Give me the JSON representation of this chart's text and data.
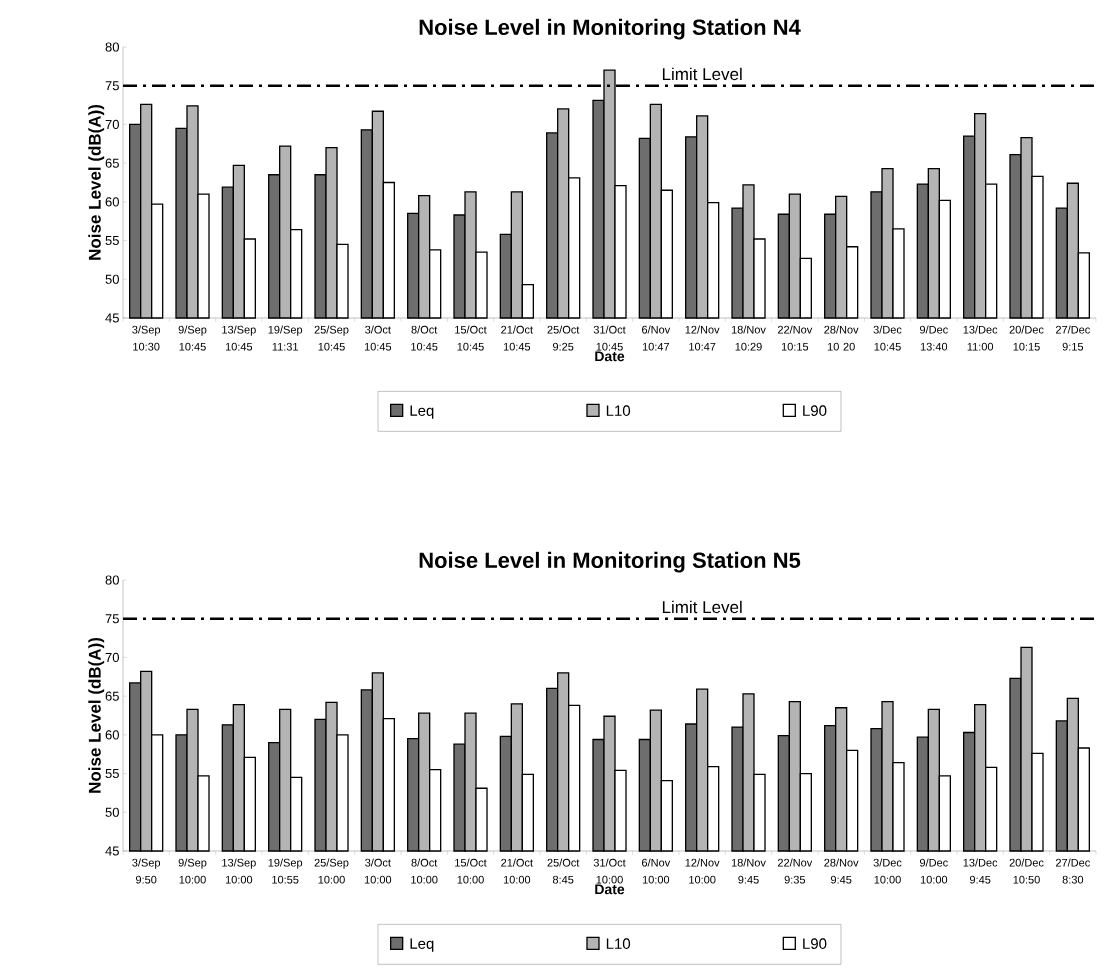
{
  "chart_data": [
    {
      "type": "bar",
      "title": "Noise Level in Monitoring Station N4",
      "xlabel": "Date",
      "ylabel": "Noise Level (dB(A))",
      "categories": [
        "3/Sep 10:30",
        "9/Sep 10:45",
        "13/Sep 10:45",
        "19/Sep 11:31",
        "25/Sep 10:45",
        "3/Oct 10:45",
        "8/Oct 10:45",
        "15/Oct 10:45",
        "21/Oct 10:45",
        "25/Oct 9:25",
        "31/Oct 10:45",
        "6/Nov 10:47",
        "12/Nov 10:47",
        "18/Nov 10:29",
        "22/Nov 10:15",
        "28/Nov 10 20",
        "3/Dec 10:45",
        "9/Dec 13:40",
        "13/Dec 11:00",
        "20/Dec 10:15",
        "27/Dec 9:15"
      ],
      "series": [
        {
          "name": "Leq",
          "color": "#6e6e6e",
          "values": [
            70,
            69.5,
            61.9,
            63.5,
            63.5,
            69.3,
            58.5,
            58.3,
            55.8,
            68.9,
            73.1,
            68.2,
            68.4,
            59.2,
            58.4,
            58.4,
            61.3,
            62.3,
            68.5,
            66.1,
            59.2
          ]
        },
        {
          "name": "L10",
          "color": "#b4b4b4",
          "values": [
            72.6,
            72.4,
            64.7,
            67.2,
            67,
            71.7,
            60.8,
            61.3,
            61.3,
            72,
            77,
            72.6,
            71.1,
            62.2,
            61,
            60.7,
            64.3,
            64.3,
            71.4,
            68.3,
            62.4
          ]
        },
        {
          "name": "L90",
          "color": "#ffffff",
          "values": [
            59.7,
            61,
            55.2,
            56.4,
            54.5,
            62.5,
            53.8,
            53.5,
            49.3,
            63.1,
            62.1,
            61.5,
            59.9,
            55.2,
            52.7,
            54.2,
            56.5,
            60.2,
            62.3,
            63.3,
            53.4
          ]
        }
      ],
      "ylim": [
        45,
        80
      ],
      "yticks": [
        45,
        50,
        55,
        60,
        65,
        70,
        75,
        80
      ],
      "ref_lines": [
        {
          "axis": "y",
          "value": 75,
          "label": "Limit Level",
          "color": "#000000",
          "line_style": "dashed"
        }
      ],
      "legend": "bottom"
    },
    {
      "type": "bar",
      "title": "Noise Level in Monitoring Station N5",
      "xlabel": "Date",
      "ylabel": "Noise Level (dB(A))",
      "categories": [
        "3/Sep 9:50",
        "9/Sep 10:00",
        "13/Sep 10:00",
        "19/Sep 10:55",
        "25/Sep 10:00",
        "3/Oct 10:00",
        "8/Oct 10:00",
        "15/Oct 10:00",
        "21/Oct 10:00",
        "25/Oct 8:45",
        "31/Oct 10:00",
        "6/Nov 10:00",
        "12/Nov 10:00",
        "18/Nov 9:45",
        "22/Nov 9:35",
        "28/Nov 9:45",
        "3/Dec 10:00",
        "9/Dec 10:00",
        "13/Dec 9:45",
        "20/Dec 10:50",
        "27/Dec 8:30"
      ],
      "series": [
        {
          "name": "Leq",
          "color": "#6e6e6e",
          "values": [
            66.7,
            60,
            61.3,
            59,
            62,
            65.8,
            59.5,
            58.8,
            59.8,
            66,
            59.4,
            59.4,
            61.4,
            61,
            59.9,
            61.2,
            60.8,
            59.7,
            60.3,
            67.3,
            61.8
          ]
        },
        {
          "name": "L10",
          "color": "#b4b4b4",
          "values": [
            68.2,
            63.3,
            63.9,
            63.3,
            64.2,
            68,
            62.8,
            62.8,
            64,
            68,
            62.4,
            63.2,
            65.9,
            65.3,
            64.3,
            63.5,
            64.3,
            63.3,
            63.9,
            71.3,
            64.7
          ]
        },
        {
          "name": "L90",
          "color": "#ffffff",
          "values": [
            60,
            54.7,
            57.1,
            54.5,
            60,
            62.1,
            55.5,
            53.1,
            54.9,
            63.8,
            55.4,
            54.1,
            55.9,
            54.9,
            55,
            58,
            56.4,
            54.7,
            55.8,
            57.6,
            58.3
          ]
        }
      ],
      "ylim": [
        45,
        80
      ],
      "yticks": [
        45,
        50,
        55,
        60,
        65,
        70,
        75,
        80
      ],
      "ref_lines": [
        {
          "axis": "y",
          "value": 75,
          "label": "Limit Level",
          "color": "#000000",
          "line_style": "dashed"
        }
      ],
      "legend": "bottom"
    }
  ]
}
